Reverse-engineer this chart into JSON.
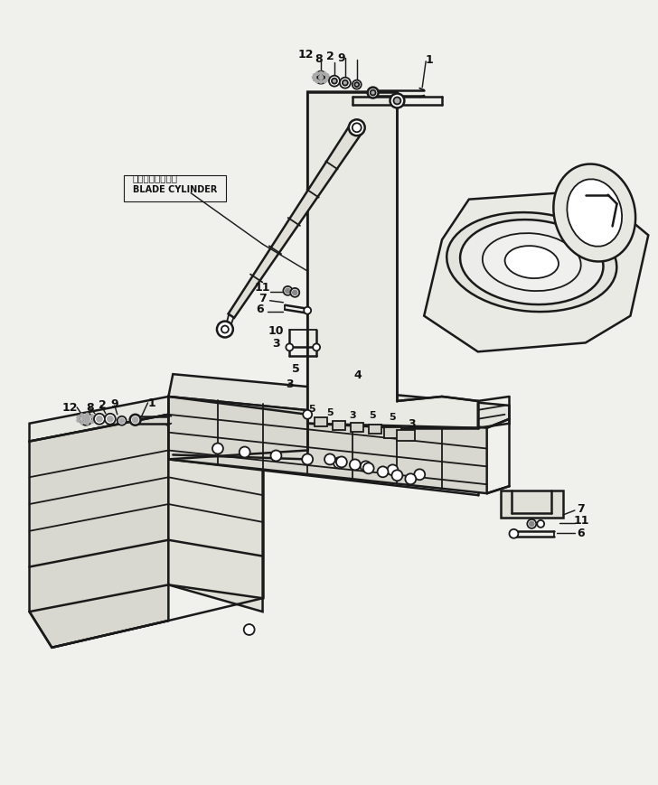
{
  "bg_color": "#f0f0ec",
  "label_font_size": 8.5,
  "label_color": "#111111",
  "line_color": "#1a1a1a",
  "line_width": 1.3,
  "japanese_text": "ブレードシリンダ",
  "english_text": "BLADE CYLINDER"
}
